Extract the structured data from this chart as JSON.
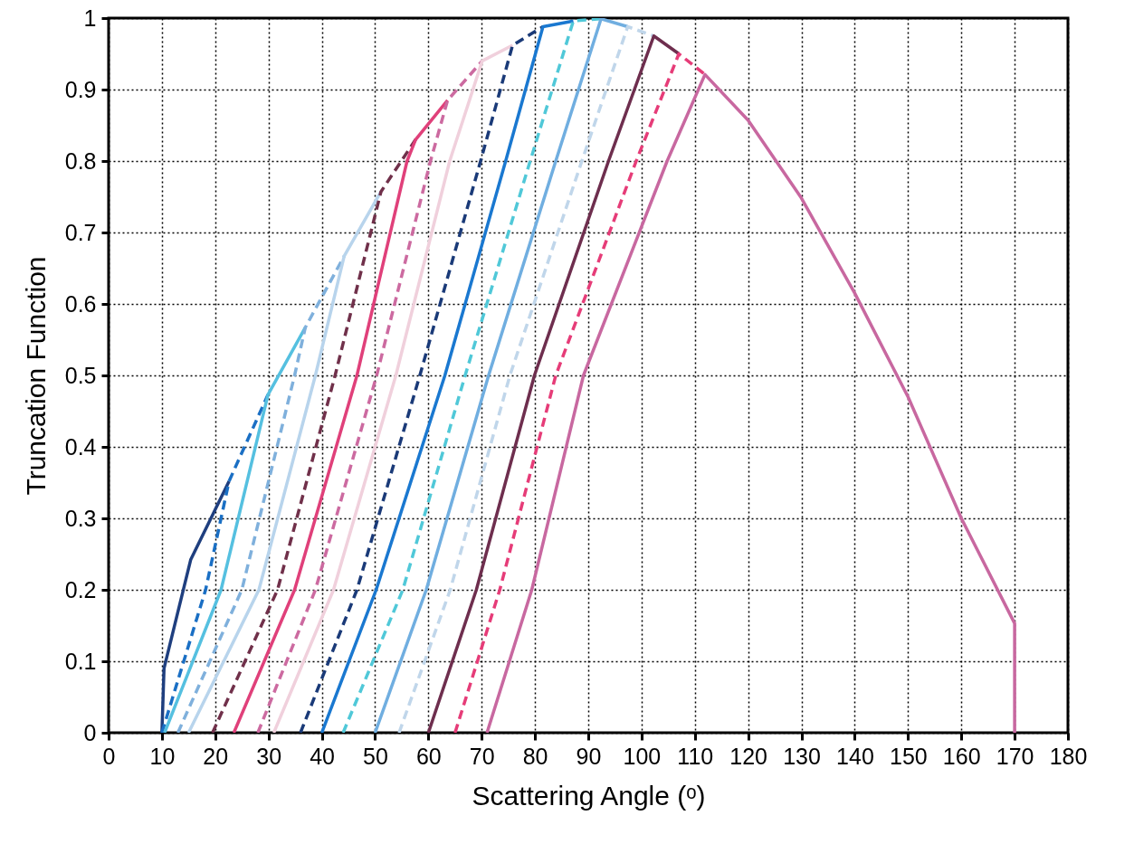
{
  "chart_data": {
    "type": "line",
    "xlabel": "Scattering Angle (ᵒ)",
    "ylabel": "Truncation Function",
    "xlim": [
      0,
      180
    ],
    "ylim": [
      0,
      1
    ],
    "xticks": [
      0,
      10,
      20,
      30,
      40,
      50,
      60,
      70,
      80,
      90,
      100,
      110,
      120,
      130,
      140,
      150,
      160,
      170,
      180
    ],
    "yticks": [
      0,
      0.1,
      0.2,
      0.3,
      0.4,
      0.5,
      0.6,
      0.7,
      0.8,
      0.9,
      1
    ],
    "grid": true,
    "series": [
      {
        "color": "#1f3f7f",
        "line_style": "solid",
        "x": [
          10,
          10.4,
          15.4,
          22.6
        ],
        "values": [
          0,
          0.09,
          0.242,
          0.352
        ]
      },
      {
        "color": "#1a6fc4",
        "line_style": "dashed",
        "x": [
          10,
          18.2,
          22.6,
          29.9
        ],
        "values": [
          0,
          0.2,
          0.352,
          0.473
        ]
      },
      {
        "color": "#55c0e0",
        "line_style": "solid",
        "x": [
          10.5,
          21.1,
          29.9,
          36.9
        ],
        "values": [
          0,
          0.2,
          0.473,
          0.567
        ]
      },
      {
        "color": "#7fb0dc",
        "line_style": "dashed",
        "x": [
          13,
          25,
          34.9,
          36.9,
          44.2
        ],
        "values": [
          0,
          0.2,
          0.5,
          0.567,
          0.667
        ]
      },
      {
        "color": "#b8d4ec",
        "line_style": "solid",
        "x": [
          15,
          28.2,
          38.8,
          44.2,
          51.1
        ],
        "values": [
          0,
          0.2,
          0.5,
          0.667,
          0.757
        ]
      },
      {
        "color": "#70304a",
        "line_style": "dashed",
        "x": [
          19.5,
          31.7,
          42.5,
          51.1,
          57.6
        ],
        "values": [
          0,
          0.2,
          0.5,
          0.757,
          0.83
        ]
      },
      {
        "color": "#e0407a",
        "line_style": "solid",
        "x": [
          23.5,
          34.9,
          46.6,
          56,
          57.6,
          63.6
        ],
        "values": [
          0,
          0.2,
          0.5,
          0.8,
          0.83,
          0.885
        ]
      },
      {
        "color": "#cc6aa0",
        "line_style": "dashed",
        "x": [
          28,
          38.8,
          50.3,
          60.4,
          63.6,
          70.1
        ],
        "values": [
          0,
          0.2,
          0.5,
          0.8,
          0.885,
          0.94
        ]
      },
      {
        "color": "#f0d0dc",
        "line_style": "solid",
        "x": [
          31,
          42.2,
          53.9,
          64,
          70.1,
          75.8
        ],
        "values": [
          0,
          0.2,
          0.5,
          0.8,
          0.94,
          0.962
        ]
      },
      {
        "color": "#1a3a78",
        "line_style": "dashed",
        "x": [
          36,
          46.6,
          58.4,
          69.8,
          75.8,
          81.5
        ],
        "values": [
          0,
          0.2,
          0.5,
          0.8,
          0.962,
          0.988
        ]
      },
      {
        "color": "#1a78d0",
        "line_style": "solid",
        "x": [
          40,
          50.2,
          63.1,
          74.5,
          81.5,
          87.2
        ],
        "values": [
          0,
          0.2,
          0.5,
          0.8,
          0.988,
          0.996
        ]
      },
      {
        "color": "#50c8d8",
        "line_style": "dashed",
        "x": [
          44,
          55.2,
          66.9,
          79.1,
          87.2,
          92.4
        ],
        "values": [
          0,
          0.2,
          0.5,
          0.8,
          0.996,
          0.999
        ]
      },
      {
        "color": "#70aee0",
        "line_style": "solid",
        "x": [
          50,
          59.6,
          71.3,
          83.9,
          92.4,
          97.4
        ],
        "values": [
          0,
          0.2,
          0.5,
          0.8,
          0.999,
          0.988
        ]
      },
      {
        "color": "#c0d6ea",
        "line_style": "dashed",
        "x": [
          54.5,
          64.1,
          75.3,
          88.8,
          97.4,
          102.3
        ],
        "values": [
          0,
          0.2,
          0.5,
          0.8,
          0.988,
          0.975
        ]
      },
      {
        "color": "#6e2e4e",
        "line_style": "solid",
        "x": [
          60,
          69,
          79.9,
          93.8,
          102.3,
          107
        ],
        "values": [
          0,
          0.2,
          0.5,
          0.8,
          0.975,
          0.95
        ]
      },
      {
        "color": "#e63c78",
        "line_style": "dashed",
        "x": [
          65,
          73.4,
          83.9,
          99,
          107,
          111.9
        ],
        "values": [
          0,
          0.2,
          0.5,
          0.8,
          0.95,
          0.921
        ]
      },
      {
        "color": "#c868a0",
        "line_style": "solid",
        "x": [
          71,
          79.4,
          89.1,
          104.8,
          111.9,
          120,
          130,
          140,
          150,
          160,
          170,
          170
        ],
        "values": [
          0,
          0.2,
          0.5,
          0.8,
          0.921,
          0.857,
          0.748,
          0.615,
          0.47,
          0.3,
          0.153,
          0
        ]
      }
    ]
  }
}
